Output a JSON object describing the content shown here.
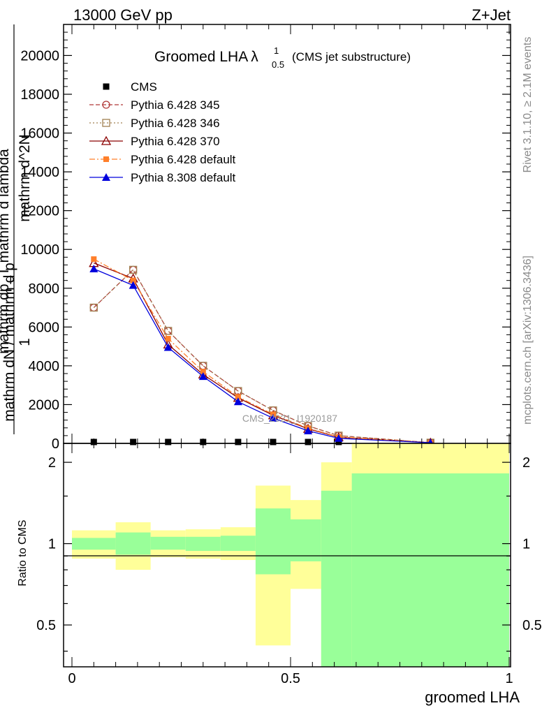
{
  "header": {
    "left": "13000 GeV pp",
    "right": "Z+Jet"
  },
  "side_labels": {
    "rivet": "Rivet 3.1.10, ≥ 2.1M events",
    "mcplots": "mcplots.cern.ch [arXiv:1306.3436]"
  },
  "watermark": "CMS_2021_I1920187",
  "colors": {
    "cms": "#000000",
    "py345": "#b03838",
    "py346": "#a08050",
    "py370": "#8b0000",
    "pydef": "#ff7f2a",
    "py8": "#0000dd",
    "band_yellow": "#ffff99",
    "band_green": "#99ff99"
  },
  "chart_data": [
    {
      "type": "line",
      "panel": "main",
      "title_main": "Groomed LHA",
      "title_symbol": "λ",
      "title_sup": "1",
      "title_sub": "0.5",
      "title_note": "(CMS jet substructure)",
      "ylabel_parts": [
        "1",
        "mathrm dN / mathrm d p",
        "mathrm d^2N",
        "mathrm dp_T mathrm d lambda"
      ],
      "yticks": [
        "0",
        "2000",
        "4000",
        "6000",
        "8000",
        "10000",
        "12000",
        "14000",
        "16000",
        "18000",
        "20000"
      ],
      "ylim": [
        0,
        21600
      ],
      "xlim": [
        0,
        1
      ],
      "x": [
        0.05,
        0.14,
        0.22,
        0.3,
        0.38,
        0.46,
        0.54,
        0.61,
        0.82
      ],
      "series": [
        {
          "name": "CMS",
          "key": "cms",
          "values": [
            20,
            20,
            20,
            20,
            20,
            20,
            20,
            20,
            20
          ]
        },
        {
          "name": "Pythia 6.428 345",
          "key": "py345",
          "values": [
            7000,
            8950,
            5800,
            4000,
            2700,
            1700,
            900,
            400,
            0
          ]
        },
        {
          "name": "Pythia 6.428 346",
          "key": "py346",
          "values": [
            7000,
            8950,
            5800,
            4000,
            2700,
            1700,
            900,
            400,
            0
          ]
        },
        {
          "name": "Pythia 6.428 370",
          "key": "py370",
          "values": [
            9300,
            8500,
            5100,
            3550,
            2350,
            1450,
            750,
            320,
            0
          ]
        },
        {
          "name": "Pythia 6.428 default",
          "key": "pydef",
          "values": [
            9500,
            8400,
            5400,
            3700,
            2400,
            1500,
            780,
            330,
            0
          ]
        },
        {
          "name": "Pythia 8.308 default",
          "key": "py8",
          "values": [
            9000,
            8150,
            4950,
            3450,
            2150,
            1300,
            650,
            260,
            0
          ]
        }
      ]
    },
    {
      "type": "area",
      "panel": "ratio",
      "ylabel": "Ratio to CMS",
      "yticks": [
        "0.5",
        "1",
        "2"
      ],
      "ytick_values": [
        0.5,
        1,
        2
      ],
      "ylim": [
        0.35,
        2.35
      ],
      "xlabel": "groomed LHA",
      "xticks": [
        "0",
        "0.5",
        "1"
      ],
      "xtick_values": [
        0,
        0.5,
        1
      ],
      "bins": [
        {
          "x0": 0.0,
          "x1": 0.1,
          "y_lo": 0.88,
          "y_hi": 1.12,
          "g_lo": 0.95,
          "g_hi": 1.05
        },
        {
          "x0": 0.1,
          "x1": 0.18,
          "y_lo": 0.8,
          "y_hi": 1.2,
          "g_lo": 0.91,
          "g_hi": 1.1
        },
        {
          "x0": 0.18,
          "x1": 0.26,
          "y_lo": 0.89,
          "y_hi": 1.12,
          "g_lo": 0.95,
          "g_hi": 1.06
        },
        {
          "x0": 0.26,
          "x1": 0.34,
          "y_lo": 0.88,
          "y_hi": 1.13,
          "g_lo": 0.94,
          "g_hi": 1.06
        },
        {
          "x0": 0.34,
          "x1": 0.42,
          "y_lo": 0.87,
          "y_hi": 1.15,
          "g_lo": 0.94,
          "g_hi": 1.07
        },
        {
          "x0": 0.42,
          "x1": 0.5,
          "y_lo": 0.42,
          "y_hi": 1.64,
          "g_lo": 0.77,
          "g_hi": 1.35
        },
        {
          "x0": 0.5,
          "x1": 0.57,
          "y_lo": 0.68,
          "y_hi": 1.45,
          "g_lo": 0.86,
          "g_hi": 1.23
        },
        {
          "x0": 0.57,
          "x1": 0.64,
          "y_lo": 0.3,
          "y_hi": 2.0,
          "g_lo": 0.3,
          "g_hi": 1.57
        },
        {
          "x0": 0.64,
          "x1": 1.0,
          "y_lo": 0.3,
          "y_hi": 2.4,
          "g_lo": 0.3,
          "g_hi": 1.82
        }
      ]
    }
  ]
}
